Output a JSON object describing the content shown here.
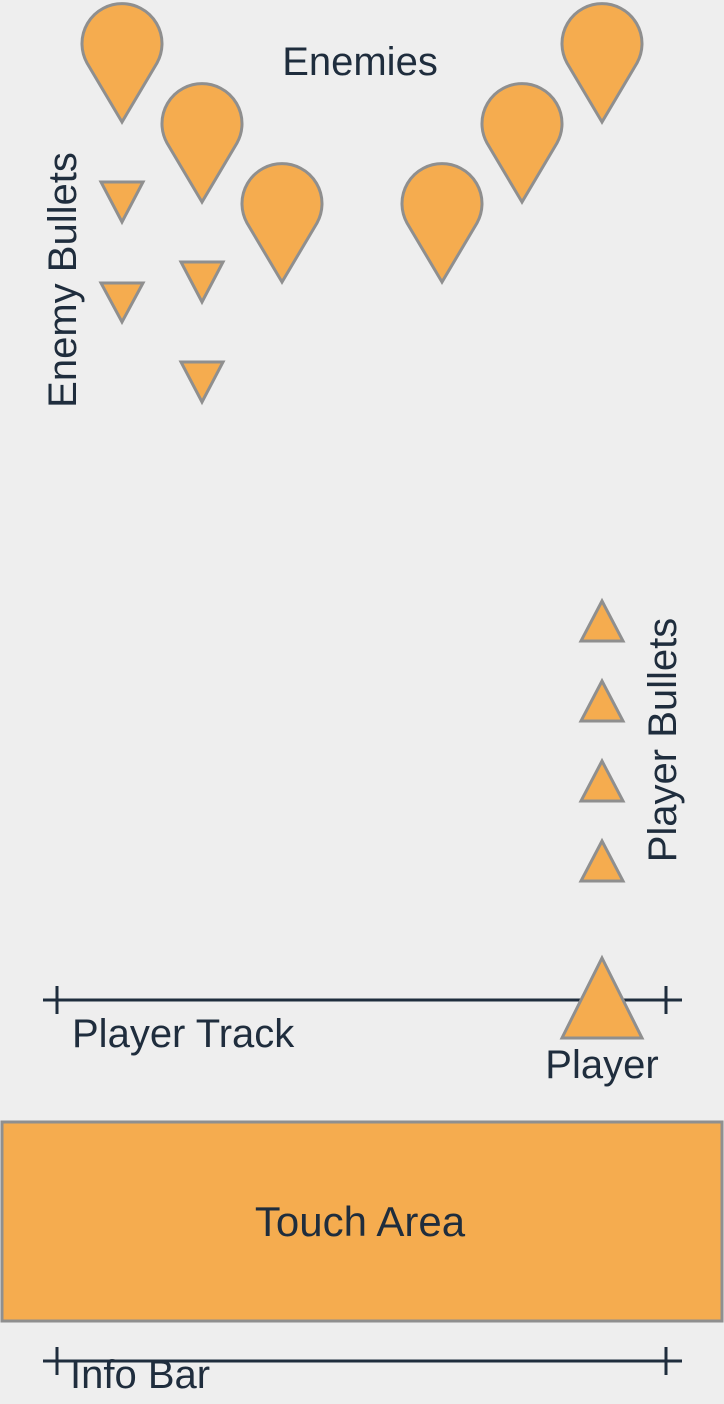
{
  "labels": {
    "enemies": "Enemies",
    "enemy_bullets": "Enemy Bullets",
    "player_bullets": "Player Bullets",
    "player_track": "Player Track",
    "player": "Player",
    "touch_area": "Touch Area",
    "info_bar": "Info Bar"
  },
  "colors": {
    "fill": "#f5ac4f",
    "stroke": "#8f8f8f",
    "line": "#1f2d3d",
    "background": "#eeeeee"
  },
  "icons": {
    "enemy": "teardrop-pin-icon",
    "enemy_bullet": "down-triangle-icon",
    "player_bullet": "up-triangle-icon",
    "player": "up-triangle-icon"
  }
}
